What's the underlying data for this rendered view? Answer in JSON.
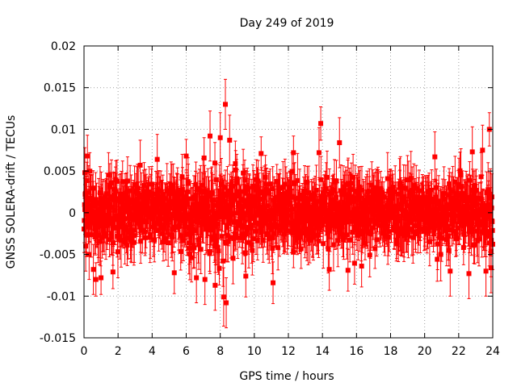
{
  "chart_data": {
    "type": "scatter",
    "title": "Day 249 of 2019",
    "xlabel": "GPS time / hours",
    "ylabel": "GNSS SOLERA-drift / TECUs",
    "xlim": [
      0,
      24
    ],
    "ylim": [
      -0.015,
      0.02
    ],
    "xticks": [
      0,
      2,
      4,
      6,
      8,
      10,
      12,
      14,
      16,
      18,
      20,
      22,
      24
    ],
    "xtick_labels": [
      "0",
      "2",
      "4",
      "6",
      "8",
      "10",
      "12",
      "14",
      "16",
      "18",
      "20",
      "22",
      "24"
    ],
    "yticks": [
      -0.015,
      -0.01,
      -0.005,
      0,
      0.005,
      0.01,
      0.015,
      0.02
    ],
    "ytick_labels": [
      "-0.015",
      "-0.01",
      "-0.005",
      "0",
      "0.005",
      "0.01",
      "0.015",
      "0.02"
    ],
    "grid": true,
    "series": [
      {
        "name": "SOLERA-drift",
        "color": "#ff0000",
        "marker": "square",
        "error_bars": true,
        "typical_spread": 0.0035,
        "typical_error": 0.0025,
        "points": [
          {
            "x": 0.05,
            "y": 0.0048,
            "err": 0.003
          },
          {
            "x": 0.1,
            "y": -0.004,
            "err": 0.003
          },
          {
            "x": 0.2,
            "y": 0.0068,
            "err": 0.0025
          },
          {
            "x": 0.3,
            "y": -0.005,
            "err": 0.003
          },
          {
            "x": 0.55,
            "y": -0.0068,
            "err": 0.003
          },
          {
            "x": 0.7,
            "y": -0.008,
            "err": 0.002
          },
          {
            "x": 1.0,
            "y": -0.0078,
            "err": 0.002
          },
          {
            "x": 1.7,
            "y": -0.0071,
            "err": 0.002
          },
          {
            "x": 3.3,
            "y": 0.0057,
            "err": 0.003
          },
          {
            "x": 4.3,
            "y": 0.0064,
            "err": 0.003
          },
          {
            "x": 5.3,
            "y": -0.0072,
            "err": 0.0025
          },
          {
            "x": 6.0,
            "y": 0.0068,
            "err": 0.002
          },
          {
            "x": 6.6,
            "y": -0.0078,
            "err": 0.003
          },
          {
            "x": 7.1,
            "y": -0.008,
            "err": 0.003
          },
          {
            "x": 7.4,
            "y": 0.0092,
            "err": 0.003
          },
          {
            "x": 7.7,
            "y": -0.0087,
            "err": 0.003
          },
          {
            "x": 8.0,
            "y": 0.009,
            "err": 0.003
          },
          {
            "x": 8.2,
            "y": -0.0101,
            "err": 0.0035
          },
          {
            "x": 8.3,
            "y": 0.013,
            "err": 0.003
          },
          {
            "x": 8.35,
            "y": -0.0108,
            "err": 0.003
          },
          {
            "x": 8.55,
            "y": 0.0087,
            "err": 0.003
          },
          {
            "x": 9.5,
            "y": -0.0076,
            "err": 0.0025
          },
          {
            "x": 10.4,
            "y": 0.0071,
            "err": 0.002
          },
          {
            "x": 11.1,
            "y": -0.0084,
            "err": 0.0025
          },
          {
            "x": 12.3,
            "y": 0.0072,
            "err": 0.002
          },
          {
            "x": 13.9,
            "y": 0.0107,
            "err": 0.002
          },
          {
            "x": 13.8,
            "y": 0.0072,
            "err": 0.003
          },
          {
            "x": 14.4,
            "y": -0.0068,
            "err": 0.0025
          },
          {
            "x": 15.0,
            "y": 0.0084,
            "err": 0.003
          },
          {
            "x": 15.5,
            "y": -0.0069,
            "err": 0.0025
          },
          {
            "x": 16.3,
            "y": -0.0064,
            "err": 0.0025
          },
          {
            "x": 20.6,
            "y": 0.0067,
            "err": 0.003
          },
          {
            "x": 21.5,
            "y": -0.007,
            "err": 0.003
          },
          {
            "x": 22.6,
            "y": -0.0073,
            "err": 0.003
          },
          {
            "x": 22.8,
            "y": 0.0073,
            "err": 0.003
          },
          {
            "x": 23.4,
            "y": 0.0075,
            "err": 0.003
          },
          {
            "x": 23.6,
            "y": -0.007,
            "err": 0.003
          },
          {
            "x": 23.8,
            "y": 0.01,
            "err": 0.002
          },
          {
            "x": 23.9,
            "y": -0.0066,
            "err": 0.003
          }
        ]
      }
    ]
  }
}
